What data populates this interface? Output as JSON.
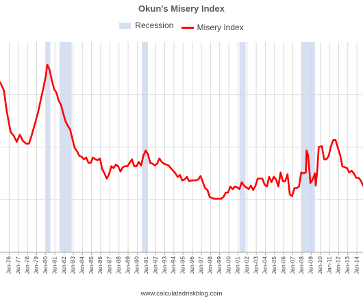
{
  "chart_data": {
    "type": "line",
    "title": "Okun's Misery Index",
    "source": "www.calculatedriskblog.com",
    "legend": {
      "position": "top",
      "items": [
        "Recession",
        "Misery Index"
      ]
    },
    "colors": {
      "recession": "#d6e0f3",
      "line": "#ff0000",
      "grid": "#d9d9d9",
      "axis": "#a6a6a6",
      "text": "#404040"
    },
    "grid": true,
    "x_range": [
      "1975-01",
      "2014-09"
    ],
    "y_range": [
      0,
      24
    ],
    "x_tick_labels": [
      "Jan-76",
      "Jan-77",
      "Jan-78",
      "Jan-79",
      "Jan-80",
      "Jan-81",
      "Jan-82",
      "Jan-83",
      "Jan-84",
      "Jan-85",
      "Jan-86",
      "Jan-87",
      "Jan-88",
      "Jan-89",
      "Jan-90",
      "Jan-91",
      "Jan-92",
      "Jan-93",
      "Jan-94",
      "Jan-95",
      "Jan-96",
      "Jan-97",
      "Jan-98",
      "Jan-99",
      "Jan-00",
      "Jan-01",
      "Jan-02",
      "Jan-03",
      "Jan-04",
      "Jan-05",
      "Jan-06",
      "Jan-07",
      "Jan-08",
      "Jan-09",
      "Jan-10",
      "Jan-11",
      "Jan-12",
      "Jan-13",
      "Jan-14"
    ],
    "recessions": [
      {
        "start": "1980-01",
        "end": "1980-07"
      },
      {
        "start": "1981-07",
        "end": "1982-11"
      },
      {
        "start": "1990-07",
        "end": "1991-03"
      },
      {
        "start": "2001-03",
        "end": "2001-11"
      },
      {
        "start": "2007-12",
        "end": "2009-06"
      }
    ],
    "series": [
      {
        "name": "Misery Index",
        "points": [
          [
            "1975-01",
            19.4
          ],
          [
            "1975-06",
            18.5
          ],
          [
            "1975-10",
            16.0
          ],
          [
            "1976-03",
            13.7
          ],
          [
            "1976-07",
            13.3
          ],
          [
            "1976-11",
            12.6
          ],
          [
            "1977-03",
            13.4
          ],
          [
            "1977-07",
            12.7
          ],
          [
            "1977-11",
            12.4
          ],
          [
            "1978-03",
            12.4
          ],
          [
            "1978-06",
            13.2
          ],
          [
            "1978-10",
            14.4
          ],
          [
            "1979-03",
            16.0
          ],
          [
            "1979-07",
            17.6
          ],
          [
            "1979-10",
            18.8
          ],
          [
            "1980-01",
            20.1
          ],
          [
            "1980-03",
            21.4
          ],
          [
            "1980-06",
            20.8
          ],
          [
            "1980-09",
            19.6
          ],
          [
            "1980-12",
            18.6
          ],
          [
            "1981-03",
            18.2
          ],
          [
            "1981-06",
            17.3
          ],
          [
            "1981-09",
            16.8
          ],
          [
            "1981-12",
            15.8
          ],
          [
            "1982-03",
            14.9
          ],
          [
            "1982-06",
            14.4
          ],
          [
            "1982-09",
            14.0
          ],
          [
            "1982-12",
            12.9
          ],
          [
            "1983-03",
            11.9
          ],
          [
            "1983-06",
            11.5
          ],
          [
            "1983-09",
            11.0
          ],
          [
            "1983-12",
            10.9
          ],
          [
            "1984-03",
            10.6
          ],
          [
            "1984-06",
            10.8
          ],
          [
            "1984-09",
            10.2
          ],
          [
            "1984-12",
            10.2
          ],
          [
            "1985-03",
            10.8
          ],
          [
            "1985-06",
            10.6
          ],
          [
            "1985-09",
            10.5
          ],
          [
            "1985-12",
            10.7
          ],
          [
            "1986-03",
            9.5
          ],
          [
            "1986-06",
            9.0
          ],
          [
            "1986-09",
            8.4
          ],
          [
            "1986-12",
            8.9
          ],
          [
            "1987-03",
            9.8
          ],
          [
            "1987-06",
            9.6
          ],
          [
            "1987-09",
            10.0
          ],
          [
            "1987-12",
            9.8
          ],
          [
            "1988-03",
            9.2
          ],
          [
            "1988-06",
            9.7
          ],
          [
            "1988-09",
            9.8
          ],
          [
            "1988-12",
            9.8
          ],
          [
            "1989-03",
            10.2
          ],
          [
            "1989-06",
            10.6
          ],
          [
            "1989-09",
            9.8
          ],
          [
            "1989-12",
            9.8
          ],
          [
            "1990-03",
            10.3
          ],
          [
            "1990-06",
            9.9
          ],
          [
            "1990-09",
            11.0
          ],
          [
            "1990-12",
            11.6
          ],
          [
            "1991-03",
            11.2
          ],
          [
            "1991-06",
            10.2
          ],
          [
            "1991-09",
            10.1
          ],
          [
            "1991-12",
            9.9
          ],
          [
            "1992-03",
            10.1
          ],
          [
            "1992-06",
            10.7
          ],
          [
            "1992-09",
            10.3
          ],
          [
            "1992-12",
            10.1
          ],
          [
            "1993-03",
            10.0
          ],
          [
            "1993-06",
            9.9
          ],
          [
            "1993-09",
            9.6
          ],
          [
            "1993-12",
            9.3
          ],
          [
            "1994-03",
            9.0
          ],
          [
            "1994-06",
            8.6
          ],
          [
            "1994-09",
            8.8
          ],
          [
            "1994-12",
            8.2
          ],
          [
            "1995-03",
            8.3
          ],
          [
            "1995-06",
            8.6
          ],
          [
            "1995-09",
            8.1
          ],
          [
            "1995-12",
            8.2
          ],
          [
            "1996-03",
            8.2
          ],
          [
            "1996-06",
            8.2
          ],
          [
            "1996-09",
            8.3
          ],
          [
            "1996-12",
            8.7
          ],
          [
            "1997-03",
            8.0
          ],
          [
            "1997-06",
            7.3
          ],
          [
            "1997-09",
            7.1
          ],
          [
            "1997-12",
            6.3
          ],
          [
            "1998-03",
            6.2
          ],
          [
            "1998-06",
            6.1
          ],
          [
            "1998-09",
            6.1
          ],
          [
            "1998-12",
            6.1
          ],
          [
            "1999-03",
            6.1
          ],
          [
            "1999-06",
            6.3
          ],
          [
            "1999-09",
            6.8
          ],
          [
            "1999-12",
            6.8
          ],
          [
            "2000-03",
            7.5
          ],
          [
            "2000-06",
            7.2
          ],
          [
            "2000-09",
            7.5
          ],
          [
            "2000-12",
            7.4
          ],
          [
            "2001-03",
            7.2
          ],
          [
            "2001-06",
            8.0
          ],
          [
            "2001-09",
            7.6
          ],
          [
            "2001-12",
            7.4
          ],
          [
            "2002-03",
            7.2
          ],
          [
            "2002-06",
            7.6
          ],
          [
            "2002-09",
            7.1
          ],
          [
            "2002-12",
            7.6
          ],
          [
            "2003-03",
            8.4
          ],
          [
            "2003-06",
            8.4
          ],
          [
            "2003-09",
            8.4
          ],
          [
            "2003-12",
            7.7
          ],
          [
            "2004-03",
            7.5
          ],
          [
            "2004-06",
            8.6
          ],
          [
            "2004-09",
            8.0
          ],
          [
            "2004-12",
            8.6
          ],
          [
            "2005-03",
            8.3
          ],
          [
            "2005-06",
            7.5
          ],
          [
            "2005-09",
            9.1
          ],
          [
            "2005-12",
            8.1
          ],
          [
            "2006-03",
            8.1
          ],
          [
            "2006-06",
            8.9
          ],
          [
            "2006-09",
            6.6
          ],
          [
            "2006-12",
            6.4
          ],
          [
            "2007-03",
            7.3
          ],
          [
            "2007-06",
            7.3
          ],
          [
            "2007-09",
            7.5
          ],
          [
            "2007-12",
            9.1
          ],
          [
            "2008-03",
            9.0
          ],
          [
            "2008-06",
            9.1
          ],
          [
            "2008-07",
            11.6
          ],
          [
            "2008-09",
            11.1
          ],
          [
            "2008-12",
            7.9
          ],
          [
            "2009-03",
            8.3
          ],
          [
            "2009-06",
            9.0
          ],
          [
            "2009-07",
            7.6
          ],
          [
            "2009-09",
            9.3
          ],
          [
            "2009-11",
            12.0
          ],
          [
            "2010-03",
            12.1
          ],
          [
            "2010-06",
            10.6
          ],
          [
            "2010-09",
            10.6
          ],
          [
            "2010-12",
            11.0
          ],
          [
            "2011-03",
            12.1
          ],
          [
            "2011-06",
            12.8
          ],
          [
            "2011-09",
            12.8
          ],
          [
            "2011-12",
            11.9
          ],
          [
            "2012-03",
            11.1
          ],
          [
            "2012-06",
            9.8
          ],
          [
            "2012-09",
            9.7
          ],
          [
            "2012-12",
            9.6
          ],
          [
            "2013-03",
            9.1
          ],
          [
            "2013-06",
            9.3
          ],
          [
            "2013-09",
            9.0
          ],
          [
            "2013-12",
            8.5
          ],
          [
            "2014-03",
            8.5
          ],
          [
            "2014-06",
            8.2
          ],
          [
            "2014-09",
            7.6
          ]
        ]
      }
    ]
  }
}
